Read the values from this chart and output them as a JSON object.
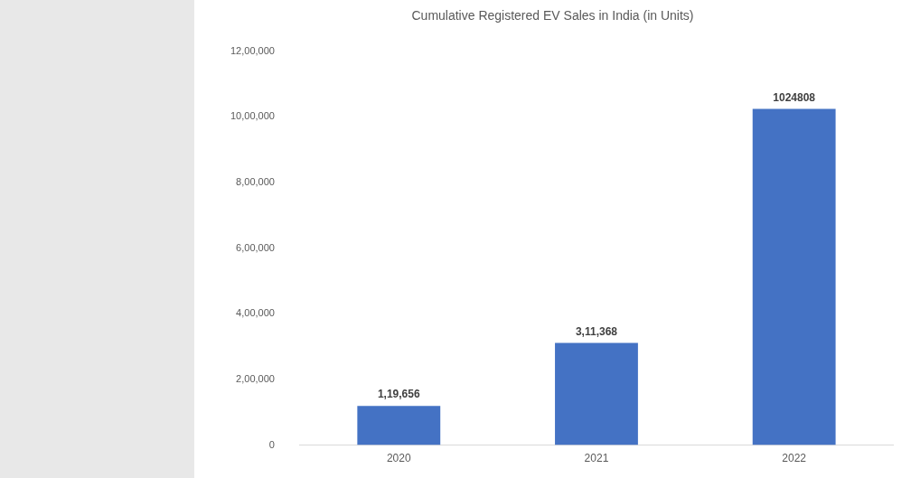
{
  "chart_data": {
    "type": "bar",
    "title": "Cumulative Registered EV Sales in India (in Units)",
    "categories": [
      "2020",
      "2021",
      "2022"
    ],
    "values": [
      119656,
      311368,
      1024808
    ],
    "value_labels": [
      "1,19,656",
      "3,11,368",
      "1024808"
    ],
    "color": "#4472c4",
    "ylim": [
      0,
      1200000
    ],
    "yticks": [
      {
        "value": 0,
        "label": "0"
      },
      {
        "value": 200000,
        "label": "2,00,000"
      },
      {
        "value": 400000,
        "label": "4,00,000"
      },
      {
        "value": 600000,
        "label": "6,00,000"
      },
      {
        "value": 800000,
        "label": "8,00,000"
      },
      {
        "value": 1000000,
        "label": "10,00,000"
      },
      {
        "value": 1200000,
        "label": "12,00,000"
      }
    ],
    "grid": false,
    "legend": false
  }
}
